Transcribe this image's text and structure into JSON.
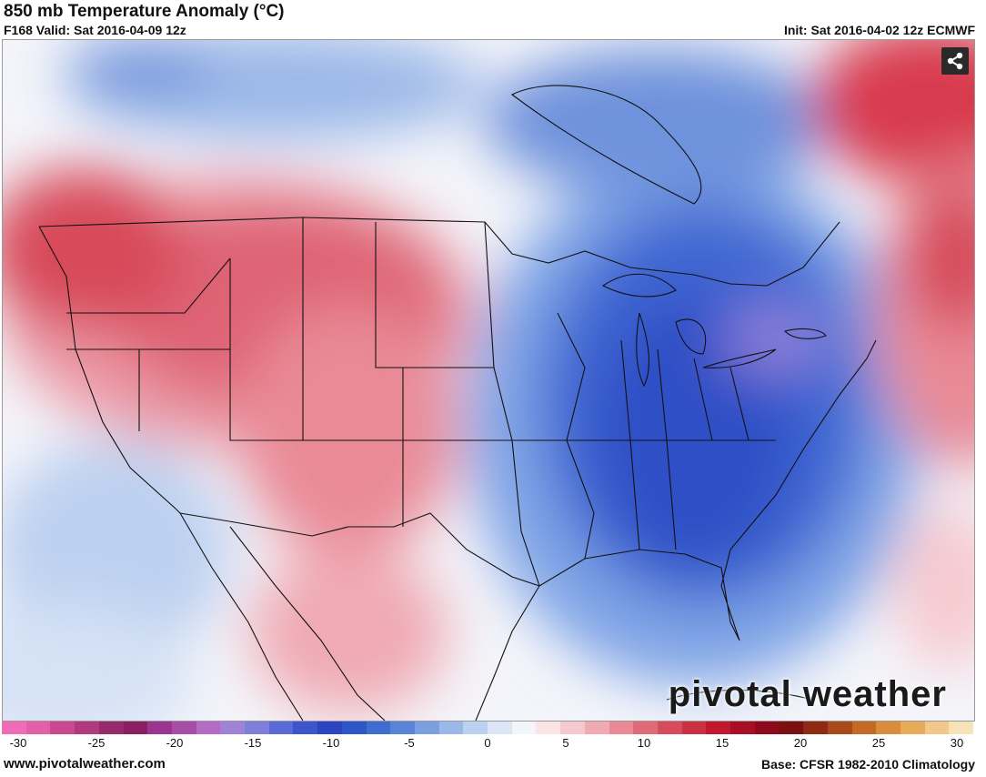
{
  "header": {
    "title": "850 mb Temperature Anomaly (°C)",
    "valid": "F168 Valid: Sat 2016-04-09 12z",
    "init": "Init: Sat 2016-04-02 12z ECMWF"
  },
  "map": {
    "share_icon": "share-icon",
    "brand": "pivotal weather"
  },
  "colorbar": {
    "colors": [
      "#f06bb8",
      "#e35fa8",
      "#c9488f",
      "#b03a7c",
      "#962b6b",
      "#8b1f62",
      "#9c3590",
      "#a74ea7",
      "#b46bc4",
      "#a082d6",
      "#7e7fdb",
      "#5a6ad6",
      "#3d55cc",
      "#2a44c2",
      "#2e56c7",
      "#3f6dcf",
      "#5a85d7",
      "#7aa0e0",
      "#9bb8e8",
      "#bcd0f0",
      "#dbe6f7",
      "#f4f5fa",
      "#fbe3e6",
      "#f6c9cf",
      "#f0aab4",
      "#e98a96",
      "#e06a77",
      "#d64c5c",
      "#cc3043",
      "#c2182e",
      "#a80f24",
      "#8c0a1c",
      "#7a1010",
      "#8f2a14",
      "#a84a1c",
      "#c46a24",
      "#d98c3a",
      "#e8ab5a",
      "#f2c88a",
      "#f8e2b8"
    ],
    "ticks": [
      "-30",
      "-25",
      "-20",
      "-15",
      "-10",
      "-5",
      "0",
      "5",
      "10",
      "15",
      "20",
      "25",
      "30"
    ]
  },
  "footer": {
    "site": "www.pivotalweather.com",
    "base": "Base: CFSR 1982-2010 Climatology"
  }
}
